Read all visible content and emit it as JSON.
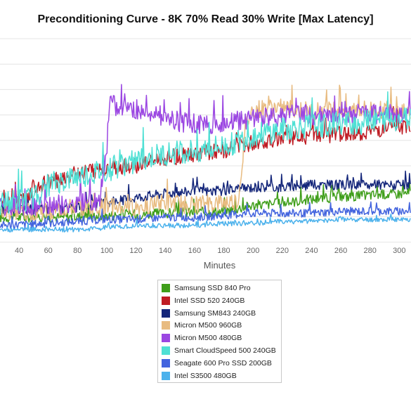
{
  "chart_data": {
    "type": "line",
    "title": "Preconditioning Curve - 8K 70% Read 30% Write [Max Latency]",
    "xlabel": "Minutes",
    "ylabel": "",
    "x_ticks": [
      40,
      60,
      80,
      100,
      120,
      140,
      160,
      180,
      200,
      220,
      240,
      260,
      280,
      300
    ],
    "xlim": [
      27,
      308
    ],
    "ylim": [
      0,
      100
    ],
    "grid": "horizontal",
    "legend_position": "bottom-center",
    "series": [
      {
        "name": "Samsung SSD 840 Pro",
        "color": "#3f9e1a",
        "points": [
          [
            27,
            12
          ],
          [
            60,
            12
          ],
          [
            100,
            13
          ],
          [
            140,
            14
          ],
          [
            180,
            15
          ],
          [
            200,
            18
          ],
          [
            220,
            19
          ],
          [
            240,
            21
          ],
          [
            260,
            22
          ],
          [
            280,
            23
          ],
          [
            308,
            24
          ]
        ]
      },
      {
        "name": "Intel SSD 520 240GB",
        "color": "#bf1c24",
        "points": [
          [
            27,
            17
          ],
          [
            45,
            21
          ],
          [
            50,
            27
          ],
          [
            60,
            29
          ],
          [
            80,
            34
          ],
          [
            100,
            36
          ],
          [
            120,
            37
          ],
          [
            140,
            41
          ],
          [
            160,
            43
          ],
          [
            180,
            45
          ],
          [
            200,
            49
          ],
          [
            220,
            51
          ],
          [
            240,
            52
          ],
          [
            260,
            53
          ],
          [
            280,
            54
          ],
          [
            308,
            57
          ]
        ]
      },
      {
        "name": "Samsung SM843 240GB",
        "color": "#14267a",
        "points": [
          [
            27,
            16
          ],
          [
            60,
            16
          ],
          [
            80,
            17
          ],
          [
            100,
            19
          ],
          [
            120,
            22
          ],
          [
            140,
            24
          ],
          [
            160,
            25
          ],
          [
            180,
            25
          ],
          [
            200,
            27
          ],
          [
            220,
            27
          ],
          [
            240,
            28
          ],
          [
            260,
            28
          ],
          [
            280,
            28
          ],
          [
            308,
            28
          ]
        ]
      },
      {
        "name": "Micron M500 960GB",
        "color": "#e8bb80",
        "points": [
          [
            27,
            14
          ],
          [
            60,
            15
          ],
          [
            80,
            17
          ],
          [
            100,
            17
          ],
          [
            120,
            17
          ],
          [
            140,
            19
          ],
          [
            160,
            18
          ],
          [
            180,
            19
          ],
          [
            190,
            20
          ],
          [
            195,
            57
          ],
          [
            200,
            65
          ],
          [
            220,
            66
          ],
          [
            240,
            64
          ],
          [
            260,
            65
          ],
          [
            280,
            65
          ],
          [
            308,
            65
          ]
        ]
      },
      {
        "name": "Micron M500 480GB",
        "color": "#9b47e2",
        "points": [
          [
            27,
            17
          ],
          [
            60,
            18
          ],
          [
            80,
            19
          ],
          [
            95,
            20
          ],
          [
            100,
            46
          ],
          [
            102,
            68
          ],
          [
            110,
            66
          ],
          [
            130,
            64
          ],
          [
            150,
            59
          ],
          [
            170,
            57
          ],
          [
            190,
            60
          ],
          [
            210,
            61
          ],
          [
            230,
            63
          ],
          [
            250,
            62
          ],
          [
            270,
            62
          ],
          [
            290,
            63
          ],
          [
            308,
            63
          ]
        ]
      },
      {
        "name": "Smart CloudSpeed 500 240GB",
        "color": "#4fe0d4",
        "points": [
          [
            27,
            19
          ],
          [
            50,
            21
          ],
          [
            60,
            28
          ],
          [
            80,
            32
          ],
          [
            100,
            35
          ],
          [
            120,
            40
          ],
          [
            140,
            43
          ],
          [
            160,
            45
          ],
          [
            180,
            47
          ],
          [
            200,
            52
          ],
          [
            220,
            55
          ],
          [
            240,
            57
          ],
          [
            260,
            58
          ],
          [
            280,
            59
          ],
          [
            308,
            61
          ]
        ]
      },
      {
        "name": "Seagate 600 Pro SSD 200GB",
        "color": "#4364de",
        "points": [
          [
            27,
            8
          ],
          [
            60,
            9
          ],
          [
            80,
            10
          ],
          [
            100,
            11
          ],
          [
            120,
            11
          ],
          [
            140,
            12
          ],
          [
            160,
            12
          ],
          [
            180,
            13
          ],
          [
            200,
            14
          ],
          [
            220,
            14
          ],
          [
            240,
            14
          ],
          [
            260,
            15
          ],
          [
            280,
            15
          ],
          [
            308,
            15
          ]
        ]
      },
      {
        "name": "Intel S3500 480GB",
        "color": "#4cb2ec",
        "points": [
          [
            27,
            6
          ],
          [
            60,
            6
          ],
          [
            80,
            6
          ],
          [
            100,
            7
          ],
          [
            120,
            8
          ],
          [
            140,
            8
          ],
          [
            160,
            8
          ],
          [
            180,
            9
          ],
          [
            200,
            9
          ],
          [
            220,
            10
          ],
          [
            240,
            10
          ],
          [
            260,
            11
          ],
          [
            280,
            11
          ],
          [
            308,
            11
          ]
        ]
      }
    ]
  }
}
